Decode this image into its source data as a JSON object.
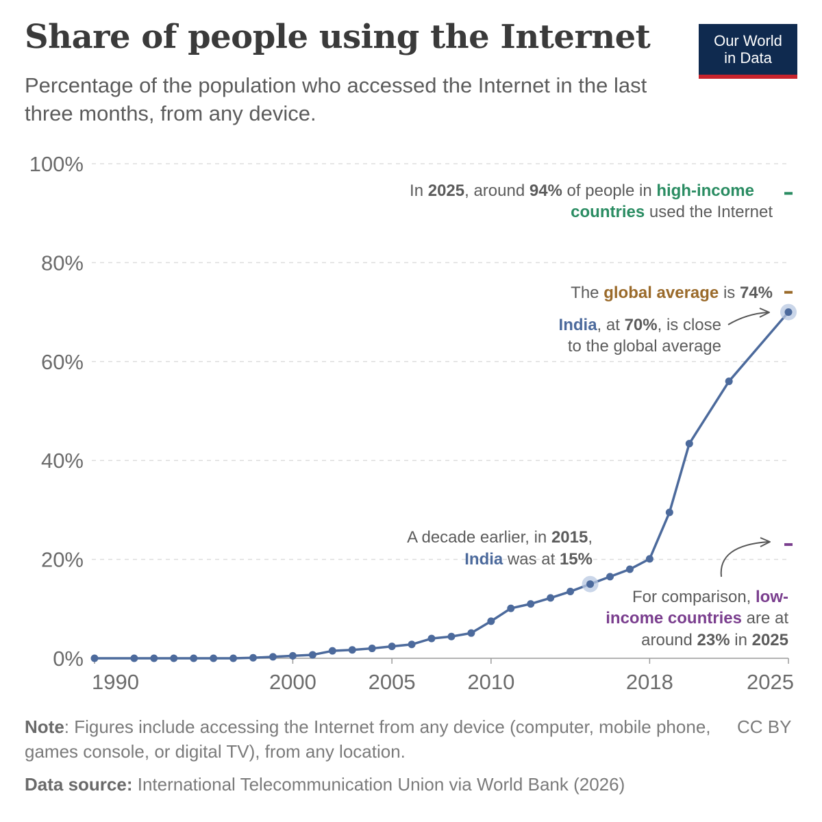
{
  "title": "Share of people using the Internet",
  "subtitle": "Percentage of the population who accessed the Internet in the last three months, from any device.",
  "logo": {
    "line1": "Our World",
    "line2": "in Data"
  },
  "colors": {
    "india": "#4c6a9c",
    "high_income": "#2a8c62",
    "global": "#9a6a2a",
    "low_income": "#7a3e8e",
    "grid": "#dddddd",
    "text": "#5b5b5b"
  },
  "chart_data": {
    "type": "line",
    "ylim": [
      0,
      100
    ],
    "xlim": [
      1990,
      2025
    ],
    "y_ticks": [
      0,
      20,
      40,
      60,
      80,
      100
    ],
    "y_tick_labels": [
      "0%",
      "20%",
      "40%",
      "60%",
      "80%",
      "100%"
    ],
    "x_ticks": [
      1990,
      2000,
      2005,
      2010,
      2018,
      2025
    ],
    "x_tick_labels": [
      "1990",
      "2000",
      "2005",
      "2010",
      "2018",
      "2025"
    ],
    "grid": "horizontal-dashed",
    "series": [
      {
        "name": "India",
        "x": [
          1990,
          1992,
          1993,
          1994,
          1995,
          1996,
          1997,
          1998,
          1999,
          2000,
          2001,
          2002,
          2003,
          2004,
          2005,
          2006,
          2007,
          2008,
          2009,
          2010,
          2011,
          2012,
          2013,
          2014,
          2015,
          2016,
          2017,
          2018,
          2019,
          2020,
          2022,
          2025
        ],
        "y": [
          0.0,
          0.0,
          0.0,
          0.0,
          0.0,
          0.0,
          0.0,
          0.1,
          0.3,
          0.5,
          0.7,
          1.5,
          1.7,
          2.0,
          2.4,
          2.8,
          4.0,
          4.4,
          5.1,
          7.5,
          10.1,
          11.0,
          12.2,
          13.5,
          15.0,
          16.5,
          18.0,
          20.1,
          29.5,
          43.4,
          56.0,
          70.0
        ]
      }
    ],
    "highlighted_points": [
      2015,
      2025
    ],
    "reference_markers": [
      {
        "name": "high-income countries",
        "value": 94,
        "color": "#2a8c62"
      },
      {
        "name": "global average",
        "value": 74,
        "color": "#9a6a2a"
      },
      {
        "name": "low-income countries",
        "value": 23,
        "color": "#7a3e8e"
      }
    ]
  },
  "annotations": {
    "high_income": {
      "line1": [
        {
          "t": "In "
        },
        {
          "t": "2025",
          "b": true
        },
        {
          "t": ", around "
        },
        {
          "t": "94%",
          "b": true
        },
        {
          "t": " of people in "
        },
        {
          "t": "high-income",
          "b": true,
          "c": "high_income"
        }
      ],
      "line2": [
        {
          "t": "countries",
          "b": true,
          "c": "high_income"
        },
        {
          "t": " used the Internet"
        }
      ]
    },
    "global": {
      "line1": [
        {
          "t": "The "
        },
        {
          "t": "global average",
          "b": true,
          "c": "global"
        },
        {
          "t": " is "
        },
        {
          "t": "74%",
          "b": true
        }
      ]
    },
    "india_2025": {
      "line1": [
        {
          "t": "India",
          "b": true,
          "c": "india"
        },
        {
          "t": ", at "
        },
        {
          "t": "70%",
          "b": true
        },
        {
          "t": ", is close"
        }
      ],
      "line2": [
        {
          "t": "to the global average"
        }
      ]
    },
    "india_2015": {
      "line1": [
        {
          "t": "A decade earlier, in "
        },
        {
          "t": "2015",
          "b": true
        },
        {
          "t": ","
        }
      ],
      "line2": [
        {
          "t": "India",
          "b": true,
          "c": "india"
        },
        {
          "t": " was at "
        },
        {
          "t": "15%",
          "b": true
        }
      ]
    },
    "low_income": {
      "line1": [
        {
          "t": "For comparison, "
        },
        {
          "t": "low-",
          "b": true,
          "c": "low_income"
        }
      ],
      "line2": [
        {
          "t": "income countries",
          "b": true,
          "c": "low_income"
        },
        {
          "t": " are at"
        }
      ],
      "line3": [
        {
          "t": "around "
        },
        {
          "t": "23%",
          "b": true
        },
        {
          "t": " in "
        },
        {
          "t": "2025",
          "b": true
        }
      ]
    }
  },
  "footer": {
    "note_label": "Note",
    "note_text": ": Figures include accessing the Internet from any device (computer, mobile phone, games console, or digital TV), from any location.",
    "source_label": "Data source:",
    "source_text": " International Telecommunication Union via World Bank (2026)",
    "license": "CC BY"
  }
}
